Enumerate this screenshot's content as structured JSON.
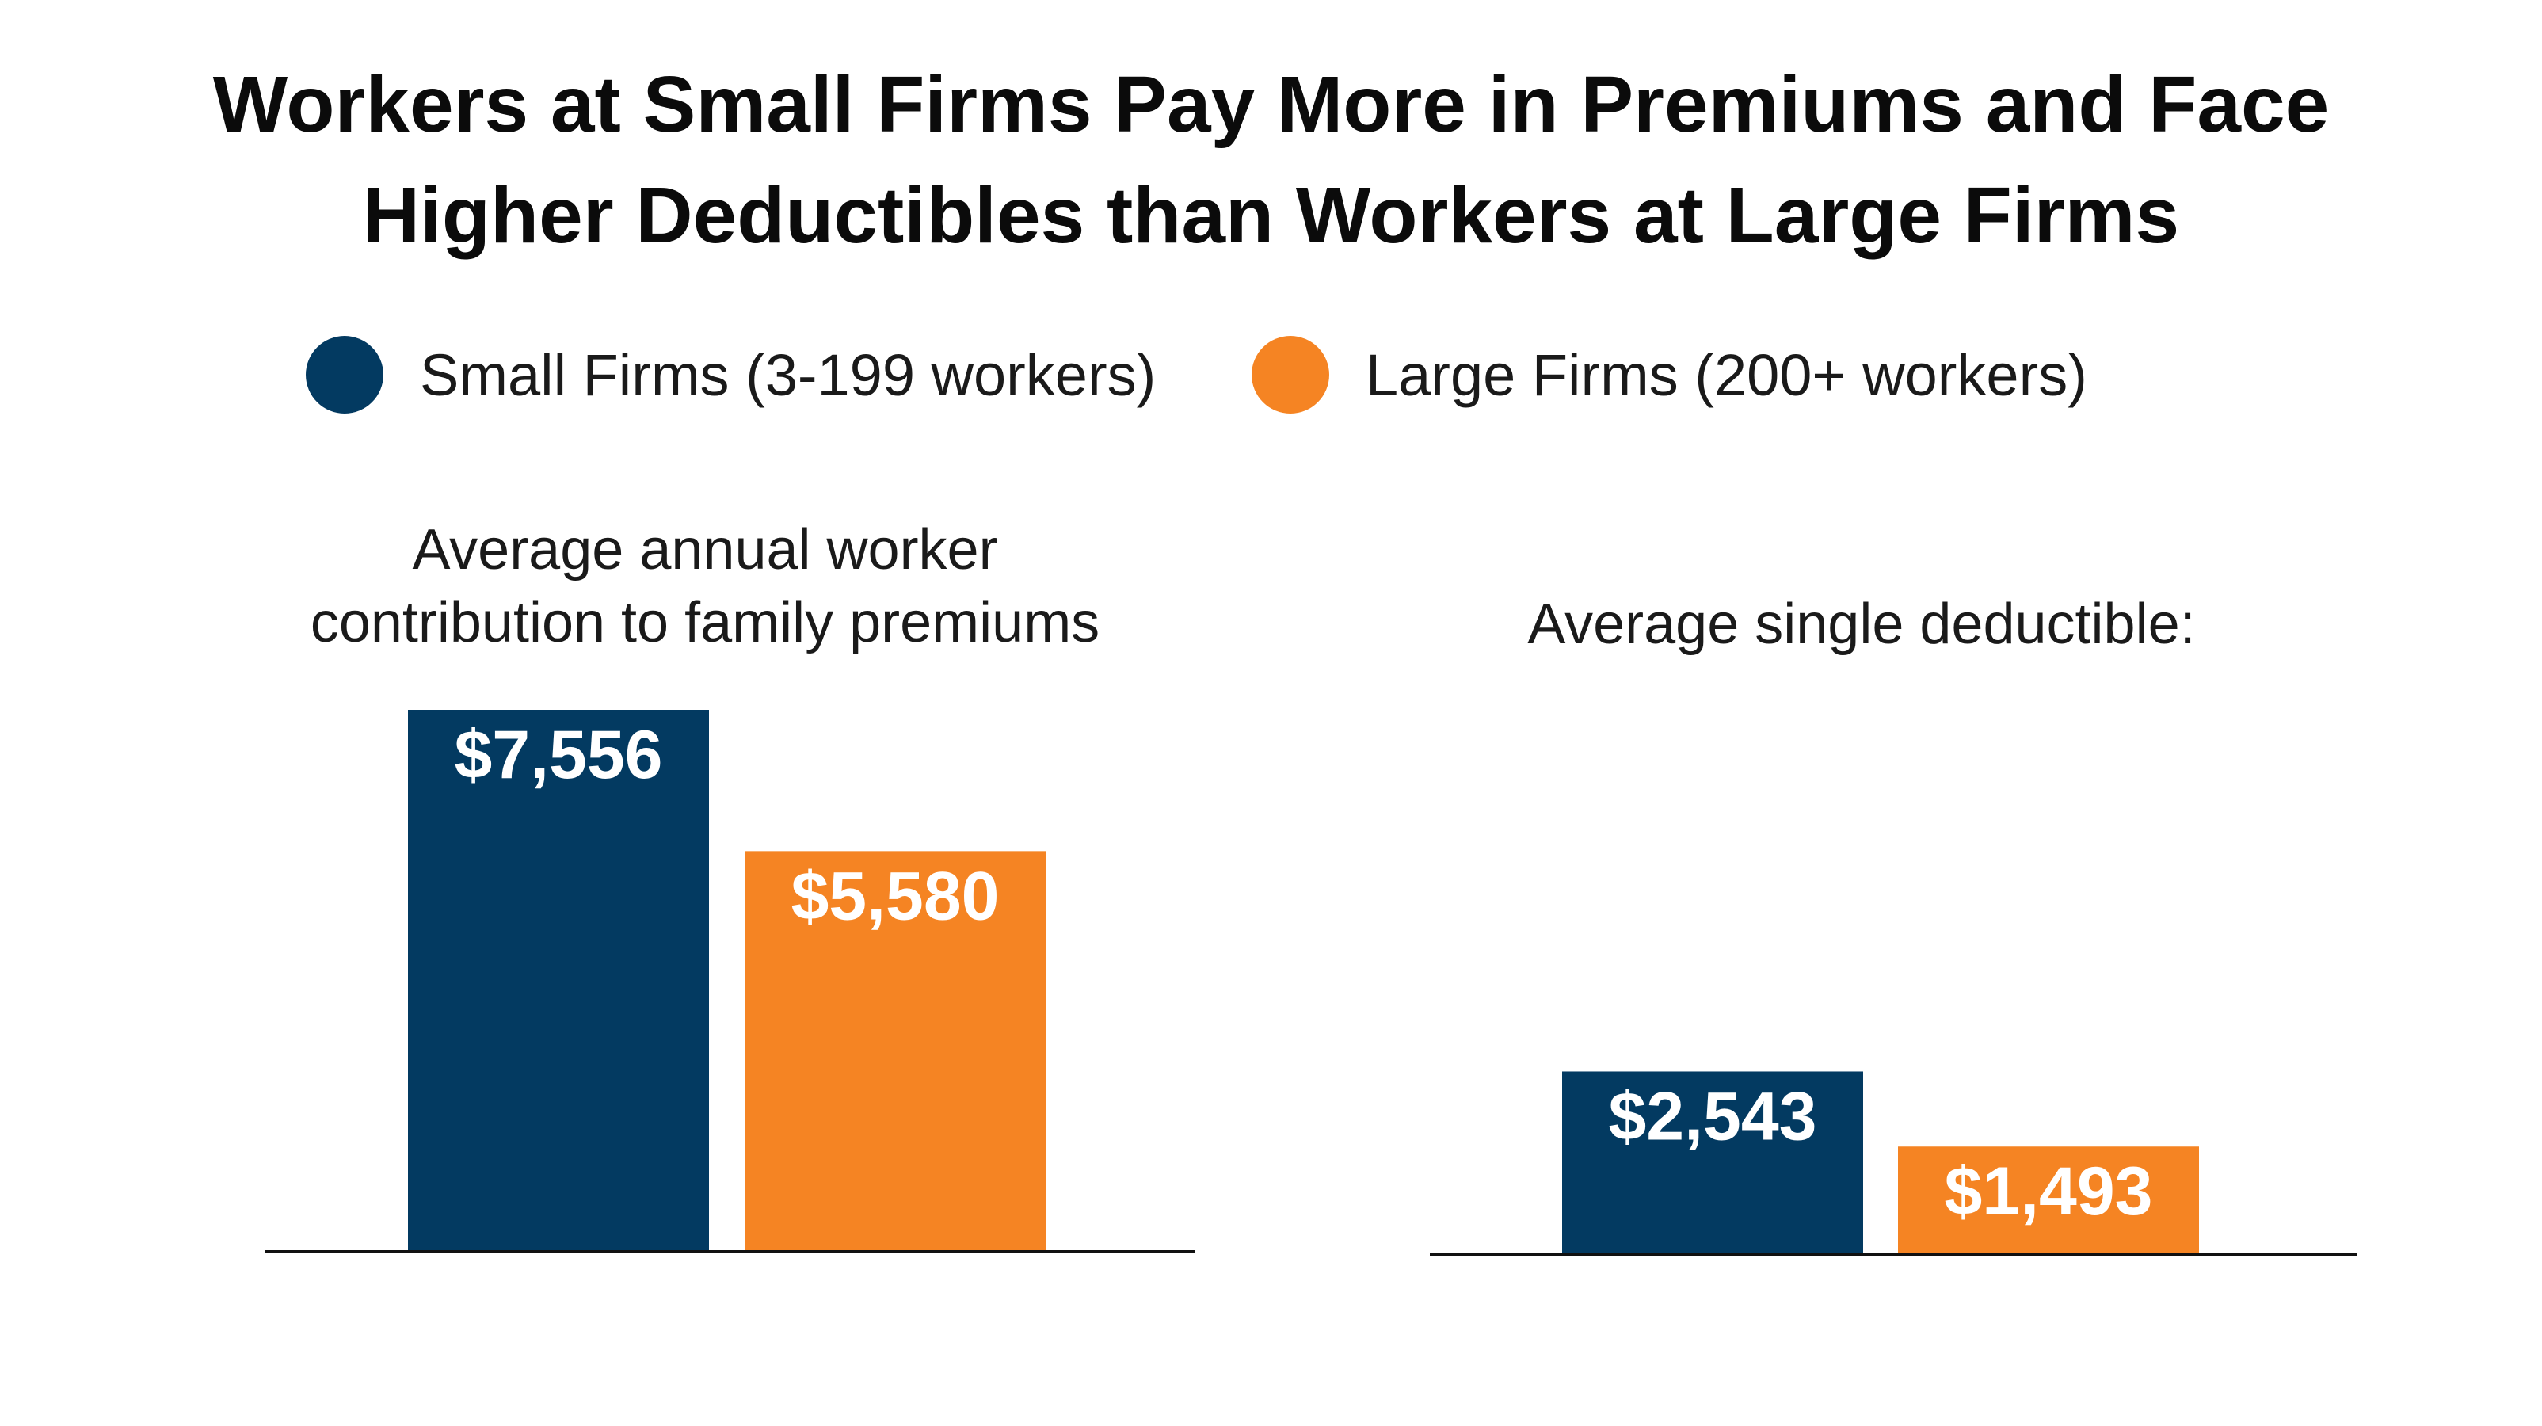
{
  "title": {
    "line1": "Workers at Small Firms Pay More in Premiums and Face",
    "line2": "Higher Deductibles than Workers at Large Firms"
  },
  "legend": [
    {
      "label": "Small Firms (3-199 workers)",
      "color": "#033a61"
    },
    {
      "label": "Large Firms (200+ workers)",
      "color": "#f58423"
    }
  ],
  "chart_data": [
    {
      "type": "bar",
      "title_line1": "Average annual worker",
      "title_line2": "contribution to family premiums",
      "categories": [
        "Small Firms (3-199 workers)",
        "Large Firms (200+ workers)"
      ],
      "values": [
        7556,
        5580
      ],
      "value_labels": [
        "$7,556",
        "$5,580"
      ],
      "colors": [
        "#033a61",
        "#f58423"
      ],
      "ylim": [
        0,
        7556
      ]
    },
    {
      "type": "bar",
      "title_line1": "Average single deductible:",
      "categories": [
        "Small Firms (3-199 workers)",
        "Large Firms (200+ workers)"
      ],
      "values": [
        2543,
        1493
      ],
      "value_labels": [
        "$2,543",
        "$1,493"
      ],
      "colors": [
        "#033a61",
        "#f58423"
      ],
      "ylim": [
        0,
        7556
      ]
    }
  ]
}
